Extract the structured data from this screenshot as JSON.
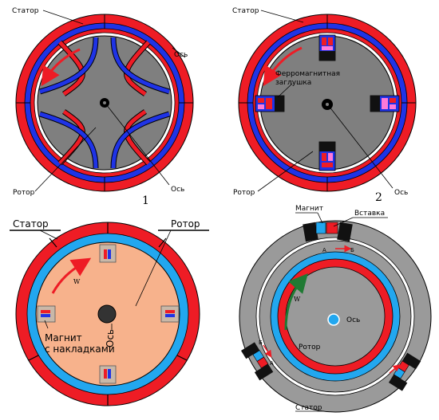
{
  "colors": {
    "stator_red": "#ee1c25",
    "stator_blue": "#1f33e6",
    "rotor_gray": "#7f7f7f",
    "rotor_peach": "#f7b28c",
    "light_blue": "#22a7ef",
    "ring_gray": "#9a9a9a",
    "arrow_green": "#1f7a33",
    "axis_dot": "#000000"
  },
  "icons": [
    "rotation-arrow-icon",
    "magnet-icon",
    "axis-icon"
  ],
  "panel1": {
    "stator": "Статор",
    "rotor": "Ротор",
    "axis": "Ось",
    "number": "1"
  },
  "panel2": {
    "stator": "Статор",
    "rotor": "Ротор",
    "axis": "Ось",
    "plug_line1": "Ферромагнитная",
    "plug_line2": "заглушка",
    "number": "2"
  },
  "panel3": {
    "stator": "Статор",
    "rotor": "Ротор",
    "axis": "Ось",
    "w": "W",
    "magnet_line1": "Магнит",
    "magnet_line2": "с накладками"
  },
  "panel4": {
    "magnet": "Магнит",
    "insert": "Вставка",
    "a_top": "А",
    "b_top": "Б",
    "b_left": "Б",
    "a_left": "А",
    "w": "W",
    "axis": "Ось",
    "rotor": "Ротор",
    "stator": "Статор"
  }
}
